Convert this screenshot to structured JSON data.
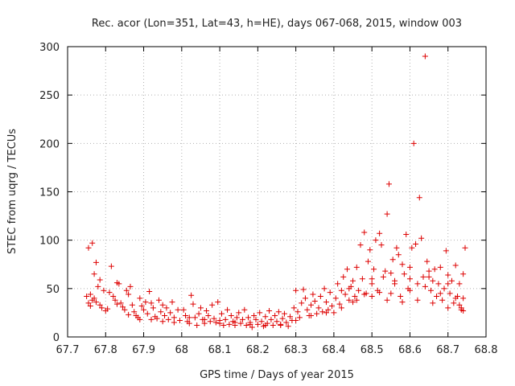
{
  "chart_data": {
    "type": "scatter",
    "title": "Rec. acor (Lon=351, Lat=43, h=HE), days 067-068, 2015, window 003",
    "xlabel": "GPS time / Days of year 2015",
    "ylabel": "STEC from uqrg / TECUs",
    "xlim": [
      67.7,
      68.8
    ],
    "ylim": [
      0,
      300
    ],
    "xticks": [
      67.7,
      67.8,
      67.9,
      68,
      68.1,
      68.2,
      68.3,
      68.4,
      68.5,
      68.6,
      68.7,
      68.8
    ],
    "xtick_labels": [
      "67.7",
      "67.8",
      "67.9",
      "68",
      "68.1",
      "68.2",
      "68.3",
      "68.4",
      "68.5",
      "68.6",
      "68.7",
      "68.8"
    ],
    "yticks": [
      0,
      50,
      100,
      150,
      200,
      250,
      300
    ],
    "ytick_labels": [
      "0",
      "50",
      "100",
      "150",
      "200",
      "250",
      "300"
    ],
    "marker": "+",
    "series": [
      {
        "name": "STEC",
        "color": "#dd0000",
        "points": [
          [
            67.755,
            92
          ],
          [
            67.765,
            97
          ],
          [
            67.775,
            77
          ],
          [
            67.77,
            65
          ],
          [
            67.785,
            59
          ],
          [
            67.78,
            52
          ],
          [
            67.795,
            48
          ],
          [
            67.76,
            44
          ],
          [
            67.75,
            42
          ],
          [
            67.765,
            38
          ],
          [
            67.775,
            36
          ],
          [
            67.755,
            35
          ],
          [
            67.785,
            33
          ],
          [
            67.79,
            30
          ],
          [
            67.805,
            29
          ],
          [
            67.81,
            46
          ],
          [
            67.815,
            73
          ],
          [
            67.82,
            42
          ],
          [
            67.825,
            38
          ],
          [
            67.83,
            56
          ],
          [
            67.835,
            55
          ],
          [
            67.84,
            35
          ],
          [
            67.845,
            31
          ],
          [
            67.85,
            28
          ],
          [
            67.855,
            48
          ],
          [
            67.86,
            44
          ],
          [
            67.865,
            52
          ],
          [
            67.87,
            33
          ],
          [
            67.875,
            26
          ],
          [
            67.88,
            22
          ],
          [
            67.885,
            20
          ],
          [
            67.89,
            40
          ],
          [
            67.895,
            32
          ],
          [
            67.9,
            28
          ],
          [
            67.905,
            36
          ],
          [
            67.91,
            24
          ],
          [
            67.915,
            47
          ],
          [
            67.92,
            35
          ],
          [
            67.925,
            30
          ],
          [
            67.93,
            21
          ],
          [
            67.935,
            19
          ],
          [
            67.94,
            38
          ],
          [
            67.945,
            26
          ],
          [
            67.95,
            33
          ],
          [
            67.955,
            22
          ],
          [
            67.96,
            30
          ],
          [
            67.965,
            18
          ],
          [
            67.97,
            25
          ],
          [
            67.975,
            36
          ],
          [
            67.98,
            20
          ],
          [
            67.99,
            28
          ],
          [
            67.995,
            17
          ],
          [
            67.76,
            32
          ],
          [
            67.77,
            40
          ],
          [
            67.8,
            27
          ],
          [
            67.83,
            34
          ],
          [
            67.86,
            23
          ],
          [
            67.89,
            18
          ],
          [
            67.92,
            18
          ],
          [
            67.95,
            16
          ],
          [
            67.98,
            15
          ],
          [
            68.005,
            28
          ],
          [
            68.01,
            22
          ],
          [
            68.015,
            16
          ],
          [
            68.02,
            14
          ],
          [
            68.025,
            43
          ],
          [
            68.03,
            34
          ],
          [
            68.035,
            20
          ],
          [
            68.04,
            12
          ],
          [
            68.045,
            24
          ],
          [
            68.05,
            30
          ],
          [
            68.055,
            18
          ],
          [
            68.06,
            14
          ],
          [
            68.065,
            27
          ],
          [
            68.07,
            22
          ],
          [
            68.075,
            16
          ],
          [
            68.08,
            33
          ],
          [
            68.085,
            19
          ],
          [
            68.09,
            15
          ],
          [
            68.095,
            36
          ],
          [
            68.1,
            14
          ],
          [
            68.105,
            24
          ],
          [
            68.11,
            12
          ],
          [
            68.115,
            18
          ],
          [
            68.12,
            28
          ],
          [
            68.125,
            13
          ],
          [
            68.13,
            22
          ],
          [
            68.135,
            16
          ],
          [
            68.14,
            12
          ],
          [
            68.145,
            20
          ],
          [
            68.15,
            25
          ],
          [
            68.155,
            14
          ],
          [
            68.16,
            18
          ],
          [
            68.165,
            28
          ],
          [
            68.17,
            12
          ],
          [
            68.175,
            20
          ],
          [
            68.18,
            15
          ],
          [
            68.185,
            10
          ],
          [
            68.19,
            22
          ],
          [
            68.195,
            18
          ],
          [
            68.2,
            13
          ],
          [
            68.205,
            25
          ],
          [
            68.21,
            16
          ],
          [
            68.215,
            11
          ],
          [
            68.22,
            21
          ],
          [
            68.225,
            14
          ],
          [
            68.23,
            27
          ],
          [
            68.235,
            18
          ],
          [
            68.24,
            12
          ],
          [
            68.245,
            22
          ],
          [
            68.25,
            16
          ],
          [
            68.255,
            26
          ],
          [
            68.26,
            13
          ],
          [
            68.265,
            19
          ],
          [
            68.27,
            24
          ],
          [
            68.275,
            15
          ],
          [
            68.28,
            11
          ],
          [
            68.285,
            21
          ],
          [
            68.29,
            17
          ],
          [
            68.295,
            30
          ],
          [
            68.3,
            48
          ],
          [
            68.305,
            26
          ],
          [
            68.31,
            20
          ],
          [
            68.315,
            35
          ],
          [
            68.32,
            49
          ],
          [
            68.325,
            40
          ],
          [
            68.33,
            28
          ],
          [
            68.335,
            22
          ],
          [
            68.34,
            33
          ],
          [
            68.345,
            44
          ],
          [
            68.35,
            37
          ],
          [
            68.355,
            24
          ],
          [
            68.36,
            30
          ],
          [
            68.365,
            42
          ],
          [
            68.37,
            26
          ],
          [
            68.375,
            50
          ],
          [
            68.38,
            36
          ],
          [
            68.385,
            28
          ],
          [
            68.39,
            46
          ],
          [
            68.395,
            32
          ],
          [
            68.4,
            25
          ],
          [
            68.405,
            40
          ],
          [
            68.41,
            55
          ],
          [
            68.415,
            34
          ],
          [
            68.42,
            48
          ],
          [
            68.425,
            62
          ],
          [
            68.43,
            44
          ],
          [
            68.435,
            70
          ],
          [
            68.44,
            38
          ],
          [
            68.445,
            52
          ],
          [
            68.45,
            58
          ],
          [
            68.455,
            42
          ],
          [
            68.46,
            72
          ],
          [
            68.465,
            48
          ],
          [
            68.47,
            95
          ],
          [
            68.475,
            60
          ],
          [
            68.48,
            108
          ],
          [
            68.485,
            45
          ],
          [
            68.49,
            78
          ],
          [
            68.495,
            90
          ],
          [
            68.5,
            55
          ],
          [
            68.505,
            70
          ],
          [
            68.51,
            100
          ],
          [
            68.515,
            48
          ],
          [
            68.52,
            107
          ],
          [
            68.525,
            95
          ],
          [
            68.53,
            62
          ],
          [
            68.535,
            68
          ],
          [
            68.54,
            127
          ],
          [
            68.545,
            158
          ],
          [
            68.55,
            45
          ],
          [
            68.555,
            80
          ],
          [
            68.56,
            58
          ],
          [
            68.565,
            92
          ],
          [
            68.57,
            85
          ],
          [
            68.575,
            42
          ],
          [
            68.58,
            75
          ],
          [
            68.585,
            65
          ],
          [
            68.59,
            106
          ],
          [
            68.595,
            50
          ],
          [
            68.6,
            72
          ],
          [
            68.605,
            92
          ],
          [
            68.61,
            200
          ],
          [
            68.615,
            96
          ],
          [
            68.62,
            55
          ],
          [
            68.625,
            144
          ],
          [
            68.63,
            102
          ],
          [
            68.635,
            62
          ],
          [
            68.64,
            290
          ],
          [
            68.645,
            78
          ],
          [
            68.65,
            68
          ],
          [
            68.655,
            48
          ],
          [
            68.66,
            58
          ],
          [
            68.665,
            70
          ],
          [
            68.67,
            42
          ],
          [
            68.675,
            55
          ],
          [
            68.68,
            72
          ],
          [
            68.685,
            38
          ],
          [
            68.69,
            50
          ],
          [
            68.695,
            89
          ],
          [
            68.7,
            64
          ],
          [
            68.705,
            45
          ],
          [
            68.71,
            58
          ],
          [
            68.715,
            35
          ],
          [
            68.72,
            74
          ],
          [
            68.725,
            42
          ],
          [
            68.73,
            55
          ],
          [
            68.735,
            30
          ],
          [
            68.74,
            65
          ],
          [
            68.745,
            92
          ],
          [
            68.74,
            40
          ],
          [
            68.735,
            28
          ],
          [
            68.73,
            33
          ],
          [
            68.02,
            20
          ],
          [
            68.06,
            18
          ],
          [
            68.1,
            17
          ],
          [
            68.14,
            15
          ],
          [
            68.18,
            13
          ],
          [
            68.22,
            12
          ],
          [
            68.26,
            12
          ],
          [
            68.3,
            17
          ],
          [
            68.34,
            22
          ],
          [
            68.38,
            25
          ],
          [
            68.42,
            30
          ],
          [
            68.46,
            38
          ],
          [
            68.5,
            42
          ],
          [
            68.54,
            38
          ],
          [
            68.58,
            36
          ],
          [
            68.62,
            38
          ],
          [
            68.66,
            35
          ],
          [
            68.7,
            30
          ],
          [
            68.74,
            27
          ],
          [
            68.45,
            36
          ],
          [
            68.48,
            44
          ],
          [
            68.52,
            46
          ],
          [
            68.56,
            55
          ],
          [
            68.6,
            48
          ],
          [
            68.64,
            52
          ],
          [
            68.68,
            45
          ],
          [
            68.72,
            40
          ],
          [
            68.44,
            50
          ],
          [
            68.5,
            60
          ],
          [
            68.55,
            66
          ],
          [
            68.6,
            60
          ],
          [
            68.65,
            62
          ],
          [
            68.7,
            55
          ]
        ]
      }
    ]
  }
}
